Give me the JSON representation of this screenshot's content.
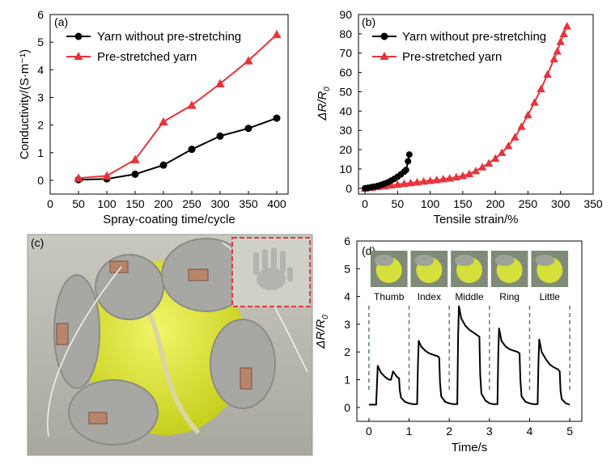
{
  "chart_data": [
    {
      "panel": "(a)",
      "type": "line",
      "xlabel": "Spray-coating time/cycle",
      "ylabel": "Conductivity/(S·m⁻¹)",
      "xlim": [
        0,
        420
      ],
      "ylim": [
        -0.5,
        6
      ],
      "xticks": [
        0,
        50,
        100,
        150,
        200,
        250,
        300,
        350,
        400
      ],
      "yticks": [
        0,
        1,
        2,
        3,
        4,
        5,
        6
      ],
      "legend": "top-left",
      "series": [
        {
          "name": "Yarn without pre-stretching",
          "color": "#000000",
          "marker": "circle",
          "x": [
            50,
            100,
            150,
            200,
            250,
            300,
            350,
            400
          ],
          "y": [
            0.02,
            0.05,
            0.22,
            0.55,
            1.12,
            1.6,
            1.88,
            2.25
          ]
        },
        {
          "name": "Pre-stretched yarn",
          "color": "#e8323c",
          "marker": "triangle",
          "x": [
            50,
            100,
            150,
            200,
            250,
            300,
            350,
            400
          ],
          "y": [
            0.08,
            0.16,
            0.75,
            2.12,
            2.72,
            3.5,
            4.33,
            5.28
          ]
        }
      ]
    },
    {
      "panel": "(b)",
      "type": "line",
      "xlabel": "Tensile strain/%",
      "ylabel_main": "ΔR/R",
      "ylabel_sub": "0",
      "xlim": [
        -10,
        350
      ],
      "ylim": [
        -3,
        90
      ],
      "xticks": [
        0,
        50,
        100,
        150,
        200,
        250,
        300,
        350
      ],
      "yticks": [
        0,
        10,
        20,
        30,
        40,
        50,
        60,
        70,
        80,
        90
      ],
      "legend": "top-left",
      "series": [
        {
          "name": "Yarn without pre-stretching",
          "color": "#000000",
          "marker": "circle",
          "x": [
            0,
            5,
            10,
            15,
            20,
            25,
            30,
            35,
            40,
            45,
            50,
            55,
            60,
            63,
            66,
            68
          ],
          "y": [
            0,
            0.3,
            0.6,
            0.9,
            1.3,
            1.8,
            2.4,
            3.1,
            4.0,
            4.9,
            6.0,
            7.2,
            8.6,
            9.5,
            14,
            17.5
          ]
        },
        {
          "name": "Pre-stretched yarn",
          "color": "#e8323c",
          "marker": "triangle",
          "x": [
            0,
            10,
            20,
            30,
            40,
            50,
            60,
            70,
            80,
            90,
            100,
            110,
            120,
            130,
            140,
            150,
            160,
            170,
            180,
            190,
            200,
            210,
            220,
            230,
            240,
            250,
            260,
            270,
            280,
            290,
            295,
            300,
            305,
            310
          ],
          "y": [
            0,
            0.4,
            0.8,
            1.2,
            1.6,
            2.0,
            2.4,
            2.8,
            3.2,
            3.6,
            4.0,
            4.4,
            4.8,
            5.2,
            5.8,
            6.5,
            7.5,
            9,
            11,
            13,
            15.5,
            18.5,
            22,
            26.5,
            32,
            38,
            44.5,
            51.5,
            59,
            67,
            71,
            76,
            80,
            84
          ]
        }
      ]
    },
    {
      "panel": "(d)",
      "type": "line",
      "xlabel": "Time/s",
      "ylabel_main": "ΔR/R",
      "ylabel_sub": "0",
      "xlim": [
        -0.3,
        5.3
      ],
      "ylim": [
        -0.5,
        6
      ],
      "xticks": [
        0,
        1,
        2,
        3,
        4,
        5
      ],
      "yticks": [
        0,
        1,
        2,
        3,
        4,
        5,
        6
      ],
      "finger_labels": [
        "Thumb",
        "Index",
        "Middle",
        "Ring",
        "Little"
      ],
      "series": [
        {
          "name": "response",
          "color": "#000000",
          "x": [
            0.0,
            0.18,
            0.2,
            0.22,
            0.3,
            0.4,
            0.5,
            0.55,
            0.6,
            0.65,
            0.7,
            0.75,
            0.77,
            0.8,
            0.9,
            1.0,
            1.1,
            1.2,
            1.22,
            1.24,
            1.3,
            1.4,
            1.5,
            1.6,
            1.7,
            1.75,
            1.77,
            1.8,
            1.9,
            2.0,
            2.1,
            2.2,
            2.22,
            2.24,
            2.3,
            2.4,
            2.5,
            2.6,
            2.7,
            2.75,
            2.77,
            2.8,
            2.9,
            3.0,
            3.1,
            3.2,
            3.22,
            3.24,
            3.3,
            3.4,
            3.5,
            3.6,
            3.7,
            3.75,
            3.77,
            3.8,
            3.9,
            4.0,
            4.1,
            4.2,
            4.22,
            4.24,
            4.3,
            4.4,
            4.5,
            4.6,
            4.7,
            4.75,
            4.77,
            4.8,
            4.9,
            5.0
          ],
          "y": [
            0.1,
            0.1,
            0.8,
            1.5,
            1.25,
            1.1,
            1.0,
            1.0,
            1.3,
            1.2,
            1.1,
            1.05,
            0.6,
            0.35,
            0.2,
            0.15,
            0.12,
            0.12,
            1.5,
            2.4,
            2.2,
            2.05,
            1.95,
            1.9,
            1.85,
            1.8,
            0.9,
            0.4,
            0.2,
            0.15,
            0.12,
            0.12,
            2.5,
            3.65,
            3.2,
            2.95,
            2.8,
            2.7,
            2.6,
            2.55,
            1.2,
            0.5,
            0.25,
            0.15,
            0.12,
            0.12,
            1.9,
            2.85,
            2.4,
            2.2,
            2.1,
            2.05,
            2.0,
            1.95,
            1.0,
            0.4,
            0.2,
            0.15,
            0.12,
            0.12,
            1.6,
            2.45,
            2.0,
            1.75,
            1.55,
            1.45,
            1.38,
            1.3,
            0.6,
            0.3,
            0.15,
            0.1
          ]
        }
      ]
    }
  ],
  "panel_c": {
    "label": "(c)"
  }
}
